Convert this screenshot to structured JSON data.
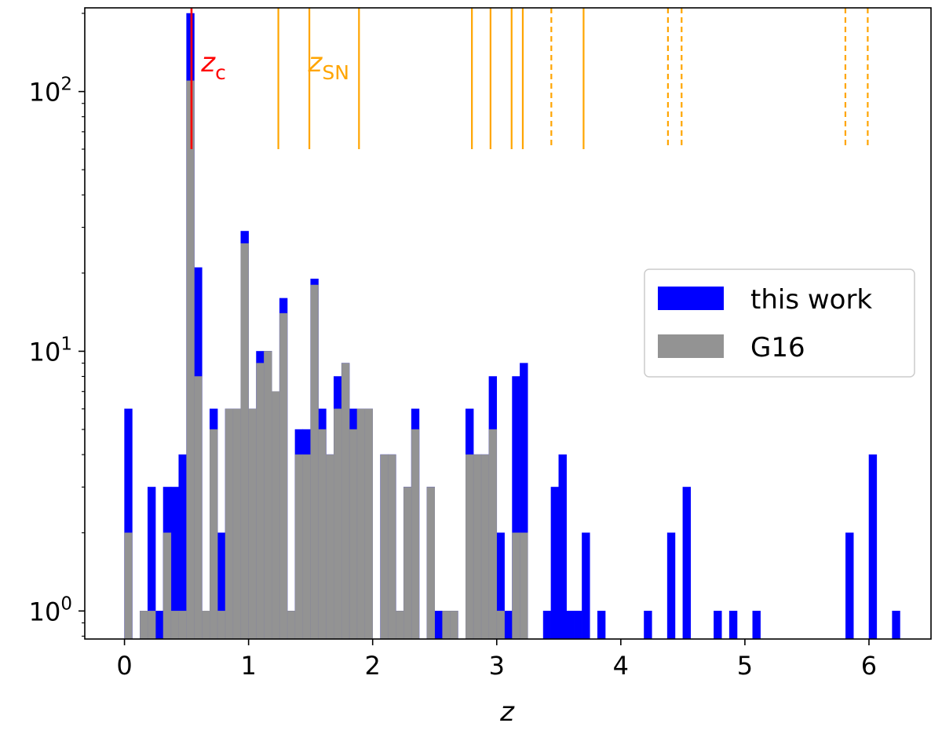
{
  "chart_data": {
    "type": "bar",
    "subtype": "histogram",
    "xlabel": "z",
    "ylabel": "",
    "xlim": [
      -0.32,
      6.5
    ],
    "ylim": [
      0.78,
      210
    ],
    "yscale": "log",
    "grid": false,
    "legend_position": "center-right",
    "bin_width": 0.0625,
    "x_ticks": [
      0,
      1,
      2,
      3,
      4,
      5,
      6
    ],
    "x_tick_labels": [
      "0",
      "1",
      "2",
      "3",
      "4",
      "5",
      "6"
    ],
    "y_ticks": [
      1,
      10,
      100
    ],
    "y_tick_labels": [
      {
        "base": "10",
        "exp": "0"
      },
      {
        "base": "10",
        "exp": "1"
      },
      {
        "base": "10",
        "exp": "2"
      }
    ],
    "series": [
      {
        "name": "this work",
        "color": "#0000ff",
        "bins": [
          [
            0.0,
            6
          ],
          [
            0.125,
            1
          ],
          [
            0.1875,
            3
          ],
          [
            0.25,
            1
          ],
          [
            0.3125,
            3
          ],
          [
            0.375,
            3
          ],
          [
            0.4375,
            4
          ],
          [
            0.5,
            200
          ],
          [
            0.5625,
            21
          ],
          [
            0.6875,
            6
          ],
          [
            0.75,
            2
          ],
          [
            0.8125,
            6
          ],
          [
            0.875,
            6
          ],
          [
            0.9375,
            29
          ],
          [
            1.0,
            6
          ],
          [
            1.0625,
            10
          ],
          [
            1.125,
            10
          ],
          [
            1.1875,
            2
          ],
          [
            1.25,
            16
          ],
          [
            1.3125,
            1
          ],
          [
            1.375,
            5
          ],
          [
            1.4375,
            5
          ],
          [
            1.5,
            19
          ],
          [
            1.5625,
            6
          ],
          [
            1.625,
            4
          ],
          [
            1.6875,
            8
          ],
          [
            1.75,
            9
          ],
          [
            1.8125,
            6
          ],
          [
            1.875,
            6
          ],
          [
            1.9375,
            6
          ],
          [
            2.0625,
            4
          ],
          [
            2.125,
            4
          ],
          [
            2.1875,
            1
          ],
          [
            2.25,
            3
          ],
          [
            2.3125,
            6
          ],
          [
            2.4375,
            3
          ],
          [
            2.5,
            1
          ],
          [
            2.5625,
            1
          ],
          [
            2.625,
            1
          ],
          [
            2.75,
            6
          ],
          [
            2.8125,
            4
          ],
          [
            2.875,
            4
          ],
          [
            2.9375,
            8
          ],
          [
            3.0,
            2
          ],
          [
            3.0625,
            1
          ],
          [
            3.125,
            8
          ],
          [
            3.1875,
            9
          ],
          [
            3.375,
            1
          ],
          [
            3.4375,
            3
          ],
          [
            3.5,
            4
          ],
          [
            3.5625,
            1
          ],
          [
            3.625,
            1
          ],
          [
            3.6875,
            2
          ],
          [
            3.8125,
            1
          ],
          [
            4.1875,
            1
          ],
          [
            4.375,
            2
          ],
          [
            4.5,
            3
          ],
          [
            4.75,
            1
          ],
          [
            4.875,
            1
          ],
          [
            5.0625,
            1
          ],
          [
            5.8125,
            2
          ],
          [
            6.0,
            4
          ],
          [
            6.1875,
            1
          ]
        ]
      },
      {
        "name": "G16",
        "color": "#939393",
        "bins": [
          [
            0.0,
            2
          ],
          [
            0.125,
            1
          ],
          [
            0.1875,
            1
          ],
          [
            0.3125,
            2
          ],
          [
            0.375,
            1
          ],
          [
            0.4375,
            1
          ],
          [
            0.5,
            110
          ],
          [
            0.5625,
            8
          ],
          [
            0.625,
            1
          ],
          [
            0.6875,
            5
          ],
          [
            0.75,
            1
          ],
          [
            0.8125,
            6
          ],
          [
            0.875,
            6
          ],
          [
            0.9375,
            26
          ],
          [
            1.0,
            6
          ],
          [
            1.0625,
            9
          ],
          [
            1.125,
            10
          ],
          [
            1.1875,
            7
          ],
          [
            1.25,
            14
          ],
          [
            1.3125,
            1
          ],
          [
            1.375,
            4
          ],
          [
            1.4375,
            4
          ],
          [
            1.5,
            18
          ],
          [
            1.5625,
            5
          ],
          [
            1.625,
            4
          ],
          [
            1.6875,
            6
          ],
          [
            1.75,
            9
          ],
          [
            1.8125,
            5
          ],
          [
            1.875,
            6
          ],
          [
            1.9375,
            6
          ],
          [
            2.0625,
            4
          ],
          [
            2.125,
            4
          ],
          [
            2.1875,
            1
          ],
          [
            2.25,
            3
          ],
          [
            2.3125,
            5
          ],
          [
            2.4375,
            3
          ],
          [
            2.5625,
            1
          ],
          [
            2.625,
            1
          ],
          [
            2.75,
            4
          ],
          [
            2.8125,
            4
          ],
          [
            2.875,
            4
          ],
          [
            2.9375,
            5
          ],
          [
            3.0,
            1
          ],
          [
            3.125,
            2
          ],
          [
            3.1875,
            2
          ]
        ]
      }
    ],
    "annotations": [
      {
        "label_base": "z",
        "label_sub": "c",
        "color": "#ff0000",
        "x": 0.54,
        "x_label": 0.58,
        "y_label": 128
      },
      {
        "label_base": "z",
        "label_sub": "SN",
        "color": "#ffa500",
        "x": 1.48,
        "x_label": 1.48,
        "y_label": 128
      }
    ],
    "vlines_red": [
      {
        "x": 0.54,
        "style": "solid"
      }
    ],
    "vlines_orange": [
      {
        "x": 1.24,
        "style": "solid"
      },
      {
        "x": 1.49,
        "style": "solid"
      },
      {
        "x": 1.89,
        "style": "solid"
      },
      {
        "x": 2.8,
        "style": "solid"
      },
      {
        "x": 2.95,
        "style": "solid"
      },
      {
        "x": 3.12,
        "style": "solid"
      },
      {
        "x": 3.21,
        "style": "solid"
      },
      {
        "x": 3.44,
        "style": "dashed"
      },
      {
        "x": 3.7,
        "style": "solid"
      },
      {
        "x": 4.38,
        "style": "dashed"
      },
      {
        "x": 4.49,
        "style": "dashed"
      },
      {
        "x": 5.81,
        "style": "dashed"
      },
      {
        "x": 5.99,
        "style": "dashed"
      }
    ],
    "vline_range": [
      60,
      210
    ]
  }
}
